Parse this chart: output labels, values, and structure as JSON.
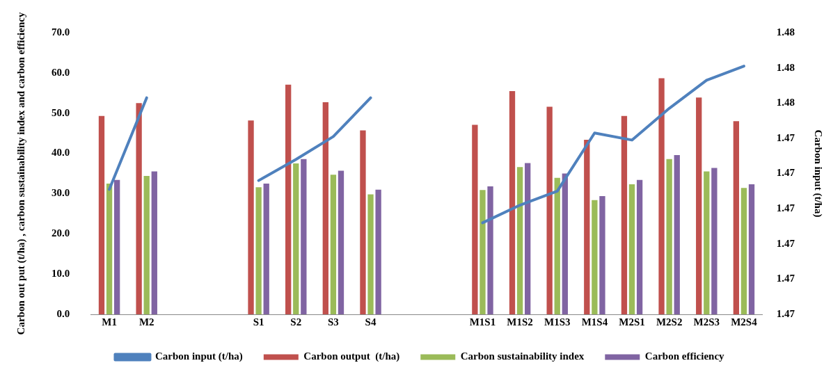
{
  "chart_data": {
    "type": "bar",
    "xlabel": null,
    "ylabel": "Carbon out put (t/ha) , carbon sustainability index and carbon efficiency",
    "y2label": "Carbon input (t/ha)",
    "categories": [
      "M1",
      "M2",
      null,
      null,
      "S1",
      "S2",
      "S3",
      "S4",
      null,
      null,
      "M1S1",
      "M1S2",
      "M1S3",
      "M1S4",
      "M2S1",
      "M2S2",
      "M2S3",
      "M2S4"
    ],
    "series": [
      {
        "name": "Carbon output  (t/ha)",
        "color": "#c0504d",
        "values": [
          49.3,
          52.5,
          null,
          null,
          48.2,
          57.1,
          52.7,
          45.7,
          null,
          null,
          47.1,
          55.5,
          51.6,
          43.4,
          49.3,
          58.7,
          53.9,
          48.0
        ]
      },
      {
        "name": "Carbon sustainability index",
        "color": "#9bbb59",
        "values": [
          32.5,
          34.4,
          null,
          null,
          31.6,
          37.5,
          34.7,
          29.8,
          null,
          null,
          30.9,
          36.6,
          33.9,
          28.4,
          32.3,
          38.6,
          35.5,
          31.4
        ]
      },
      {
        "name": "Carbon efficiency",
        "color": "#8064a2",
        "values": [
          33.4,
          35.5,
          null,
          null,
          32.5,
          38.6,
          35.7,
          31.0,
          null,
          null,
          31.8,
          37.6,
          35.0,
          29.4,
          33.4,
          39.6,
          36.4,
          32.3
        ]
      },
      {
        "name": "Carbon input (t/ha)",
        "color": "#4f81bd",
        "type": "line",
        "axis": "y2",
        "values": [
          1.4721,
          1.4773,
          null,
          null,
          1.4726,
          1.4738,
          1.4751,
          1.4773,
          null,
          null,
          1.4702,
          1.4712,
          1.472,
          1.4753,
          1.4749,
          1.4767,
          1.4783,
          1.4791
        ]
      }
    ],
    "ylim": [
      0,
      70
    ],
    "yticks": [
      {
        "value": 0,
        "label": "0.0"
      },
      {
        "value": 10,
        "label": "10.0"
      },
      {
        "value": 20,
        "label": "20.0"
      },
      {
        "value": 30,
        "label": "30.0"
      },
      {
        "value": 40,
        "label": "40.0"
      },
      {
        "value": 50,
        "label": "50.0"
      },
      {
        "value": 60,
        "label": "60.0"
      },
      {
        "value": 70,
        "label": "70.0"
      }
    ],
    "y2lim": [
      1.465,
      1.481
    ],
    "y2ticks": [
      {
        "value": 1.465,
        "label": "1.47"
      },
      {
        "value": 1.467,
        "label": "1.47"
      },
      {
        "value": 1.469,
        "label": "1.47"
      },
      {
        "value": 1.471,
        "label": "1.47"
      },
      {
        "value": 1.473,
        "label": "1.47"
      },
      {
        "value": 1.475,
        "label": "1.47"
      },
      {
        "value": 1.477,
        "label": "1.48"
      },
      {
        "value": 1.479,
        "label": "1.48"
      },
      {
        "value": 1.481,
        "label": "1.48"
      }
    ],
    "grid": false,
    "legend": "bottom",
    "marker": "none"
  }
}
